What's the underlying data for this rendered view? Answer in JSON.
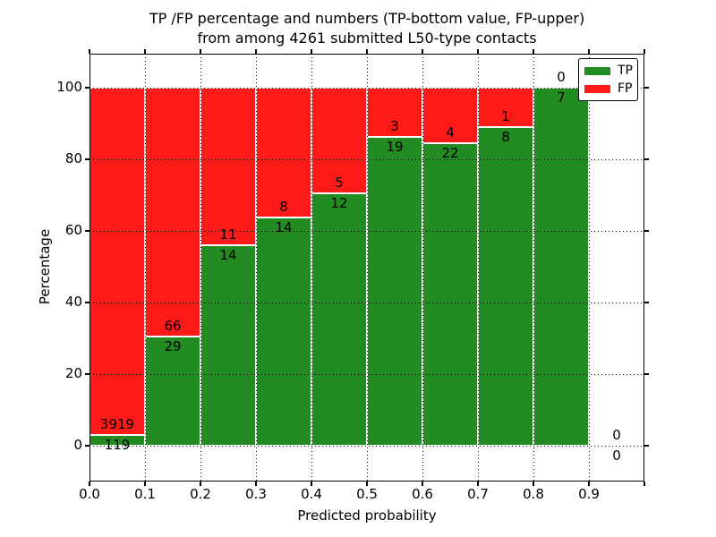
{
  "figure": {
    "title_line1": "TP /FP percentage and numbers (TP-bottom value, FP-upper)",
    "title_line2": "from among 4261 submitted L50-type contacts",
    "xlabel": "Predicted probability",
    "ylabel": "Percentage"
  },
  "legend": {
    "items": [
      {
        "label": "TP",
        "color": "#228B22"
      },
      {
        "label": "FP",
        "color": "#FF1A1A"
      }
    ]
  },
  "chart_data": {
    "type": "bar",
    "stacked": true,
    "normalized_to_percent": true,
    "title": "TP /FP percentage and numbers (TP-bottom value, FP-upper) from among 4261 submitted L50-type contacts",
    "xlabel": "Predicted probability",
    "ylabel": "Percentage",
    "total_contacts": 4261,
    "bin_width": 0.1,
    "categories": [
      "0.0",
      "0.1",
      "0.2",
      "0.3",
      "0.4",
      "0.5",
      "0.6",
      "0.7",
      "0.8",
      "0.9"
    ],
    "series": [
      {
        "name": "TP",
        "color": "#228B22",
        "counts": [
          119,
          29,
          14,
          14,
          12,
          19,
          22,
          8,
          7,
          0
        ]
      },
      {
        "name": "FP",
        "color": "#FF1A1A",
        "counts": [
          3919,
          66,
          11,
          8,
          5,
          3,
          4,
          1,
          0,
          0
        ]
      }
    ],
    "xticks": [
      "0.0",
      "0.1",
      "0.2",
      "0.3",
      "0.4",
      "0.5",
      "0.6",
      "0.7",
      "0.8",
      "0.9"
    ],
    "yticks": [
      0,
      20,
      40,
      60,
      80,
      100
    ],
    "xlim": [
      0.0,
      1.0
    ],
    "ylim_percent": [
      0,
      100
    ],
    "grid": "dotted",
    "bar_edge_color": "#ffffff",
    "legend_position": "upper right"
  }
}
